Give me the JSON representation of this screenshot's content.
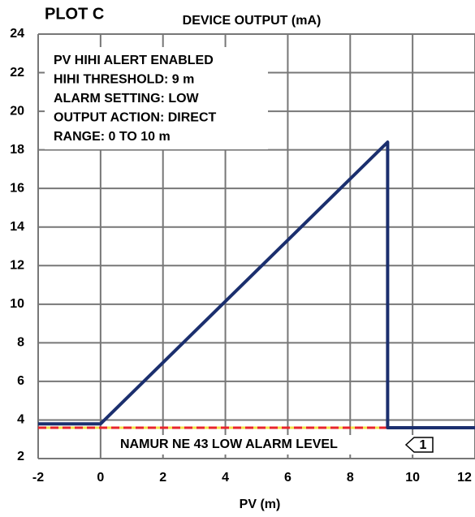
{
  "chart_data": {
    "type": "line",
    "label": "PLOT C",
    "title": "DEVICE OUTPUT (mA)",
    "xlabel": "PV (m)",
    "annotations": [
      "PV HIHI ALERT ENABLED",
      "HIHI THRESHOLD: 9 m",
      "ALARM SETTING: LOW",
      "OUTPUT ACTION: DIRECT",
      "RANGE: 0 TO 10 m"
    ],
    "series": [
      {
        "color": "#1b2f6e",
        "x": [
          -2,
          0,
          9.2,
          9.2,
          12
        ],
        "values": [
          3.8,
          3.8,
          18.4,
          3.6,
          3.6
        ]
      }
    ],
    "reference_line": {
      "value": 3.6,
      "label": "NAMUR NE 43 LOW ALARM LEVEL",
      "callout": "1",
      "color": "#e8262b"
    },
    "xlim": [
      -2,
      12
    ],
    "xticks": [
      -2,
      0,
      2,
      4,
      6,
      8,
      10,
      12
    ],
    "ylim": [
      2,
      24
    ],
    "yticks": [
      2,
      4,
      6,
      8,
      10,
      12,
      14,
      16,
      18,
      20,
      22,
      24
    ],
    "grid": true
  }
}
